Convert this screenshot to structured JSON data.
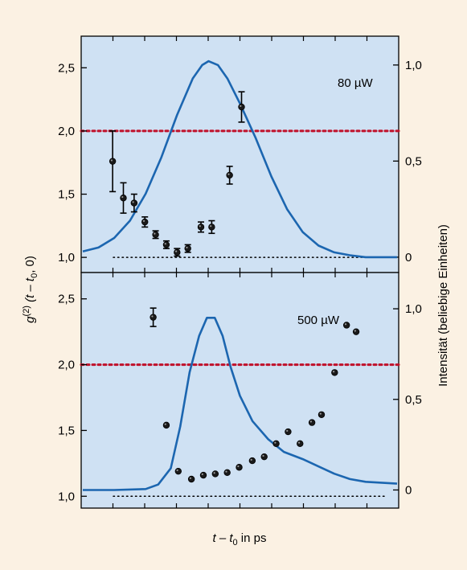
{
  "figure": {
    "xlabel": "t – t",
    "xlabel_sub": "0",
    "xlabel_rest": " in ps",
    "ylabel_left_g": "g",
    "ylabel_left_sup": "(2)",
    "ylabel_left_arg1": " (t – t",
    "ylabel_left_sub": "0",
    "ylabel_left_arg2": ", 0)",
    "ylabel_right": "Intensität (beliebige Einheiten)"
  },
  "chart_data": [
    {
      "type": "scatter",
      "panel": "top",
      "annotation": "80 µW",
      "left_axis": {
        "ticks": [
          "1,0",
          "1,5",
          "2,0",
          "2,5"
        ],
        "tick_values": [
          1.0,
          1.5,
          2.0,
          2.5
        ],
        "ylim": [
          0.88,
          2.75
        ]
      },
      "right_axis": {
        "ticks": [
          "0",
          "0,5",
          "1,0"
        ],
        "tick_values": [
          0,
          0.5,
          1.0
        ],
        "ylim": [
          -0.08,
          1.15
        ]
      },
      "xlim": [
        0,
        10
      ],
      "reference_lines": [
        {
          "y": 2.0,
          "style": "red-dotted"
        },
        {
          "y": 1.0,
          "style": "black-dotted"
        }
      ],
      "series": [
        {
          "kind": "points",
          "x": [
            1.25,
            1.7,
            2.15,
            2.6,
            3.05,
            3.5,
            3.95,
            4.4,
            4.95,
            5.4,
            6.15,
            6.65
          ],
          "y": [
            1.76,
            1.47,
            1.43,
            1.28,
            1.18,
            1.1,
            1.04,
            1.07,
            1.24,
            1.24,
            1.65,
            2.19
          ],
          "err": [
            0.24,
            0.12,
            0.07,
            0.04,
            0.03,
            0.03,
            0.03,
            0.03,
            0.04,
            0.05,
            0.07,
            0.12
          ]
        },
        {
          "kind": "curve",
          "x": [
            0,
            0.5,
            1.0,
            1.5,
            2.0,
            2.5,
            3.0,
            3.5,
            3.8,
            4.0,
            4.3,
            4.6,
            5.0,
            5.5,
            6.0,
            6.5,
            7.0,
            7.5,
            8.0,
            8.5,
            9.0,
            9.5,
            10
          ],
          "y": [
            0.03,
            0.05,
            0.1,
            0.19,
            0.33,
            0.52,
            0.74,
            0.93,
            1.0,
            1.02,
            1.0,
            0.93,
            0.8,
            0.62,
            0.42,
            0.25,
            0.13,
            0.06,
            0.025,
            0.01,
            0.0,
            0.0,
            0.0
          ]
        }
      ]
    },
    {
      "type": "scatter",
      "panel": "bottom",
      "annotation": "500 µW",
      "left_axis": {
        "ticks": [
          "1,0",
          "1,5",
          "2,0",
          "2,5"
        ],
        "tick_values": [
          1.0,
          1.5,
          2.0,
          2.5
        ],
        "ylim": [
          0.91,
          2.7
        ]
      },
      "right_axis": {
        "ticks": [
          "0",
          "0,5",
          "1,0"
        ],
        "tick_values": [
          0,
          0.5,
          1.0
        ],
        "ylim": [
          -0.1,
          1.2
        ]
      },
      "xlim": [
        0,
        10
      ],
      "reference_lines": [
        {
          "y": 2.0,
          "style": "red-dotted"
        },
        {
          "y": 1.0,
          "style": "black-dotted"
        }
      ],
      "series": [
        {
          "kind": "points",
          "x": [
            2.95,
            3.5,
            4.0,
            4.55,
            5.05,
            5.55,
            6.05,
            6.55,
            7.1,
            7.6,
            8.1,
            8.6,
            9.1,
            9.6,
            10.0
          ],
          "y": [
            2.36,
            1.54,
            1.19,
            1.13,
            1.16,
            1.17,
            1.18,
            1.22,
            1.27,
            1.3,
            1.4,
            1.49,
            1.4,
            1.56,
            1.62
          ],
          "err": [
            0.07,
            0,
            0,
            0,
            0,
            0,
            0,
            0,
            0,
            0,
            0,
            0,
            0,
            0,
            0
          ]
        },
        {
          "kind": "points_extra",
          "x": [
            10.55,
            11.05,
            11.45
          ],
          "y": [
            1.94,
            2.3,
            2.25
          ]
        },
        {
          "kind": "curve",
          "x": [
            0,
            1.0,
            2.0,
            2.4,
            2.8,
            3.1,
            3.4,
            3.7,
            3.95,
            4.2,
            4.45,
            4.7,
            5.0,
            5.4,
            5.9,
            6.4,
            7.0,
            7.5,
            8.0,
            8.5,
            9.0,
            9.5,
            10
          ],
          "y": [
            0.0,
            0.0,
            0.005,
            0.03,
            0.12,
            0.35,
            0.65,
            0.85,
            0.95,
            0.95,
            0.85,
            0.68,
            0.52,
            0.38,
            0.28,
            0.21,
            0.17,
            0.13,
            0.09,
            0.06,
            0.045,
            0.04,
            0.035
          ]
        }
      ]
    }
  ]
}
